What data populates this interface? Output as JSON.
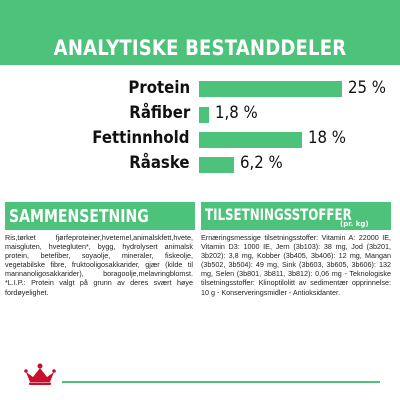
{
  "header": {
    "title": "ANALYTISKE BESTANDDELER"
  },
  "nutrients": [
    {
      "label": "Protein",
      "value": "25 %",
      "percent": 25
    },
    {
      "label": "Råfiber",
      "value": "1,8 %",
      "percent": 1.8
    },
    {
      "label": "Fettinnhold",
      "value": "18 %",
      "percent": 18
    },
    {
      "label": "Råaske",
      "value": "6,2 %",
      "percent": 6.2
    }
  ],
  "composition": {
    "title": "SAMMENSETNING",
    "text": "Ris,tørket fjørfeproteiner,hvetemel,animalskfett,hvete, maisgluten, hvetegluten*, bygg, hydrolysert animalsk protein, betefiber, soyaolje, mineraler, fiskeolje, vegetabilske fibre, fruktooligosakkarider, gjær (kilde til mannanoligosakkarider), boragoolje,melavringblomst. *L.I.P.: Protein valgt på grunn av deres svært høye fordøyelighet."
  },
  "additives": {
    "title": "TILSETNINGSSTOFFER",
    "subtitle": "(pr. kg)",
    "text": "Ernæringsmessige tilsetningsstoffer: Vitamin A: 22000 IE, Vitamin D3: 1000 IE, Jern (3b103): 38 mg, Jod (3b201, 3b202): 3,8 mg, Kobber (3b405, 3b406): 12 mg, Mangan (3b502, 3b504): 49 mg, Sink (3b603, 3b605, 3b606): 132 mg, Selen (3b801, 3b811, 3b812): 0,06 mg - Teknologiske tilsetningsstoffer: Klinoptilolitt av sedimentær opprinnelse: 10 g - Konserveringsmidler - Antioksidanter."
  },
  "brand": {
    "logo": "royal-canin-crown-logo"
  },
  "colors": {
    "accent": "#4dc27b",
    "text": "#1a1a1a",
    "background": "#ffffff"
  }
}
